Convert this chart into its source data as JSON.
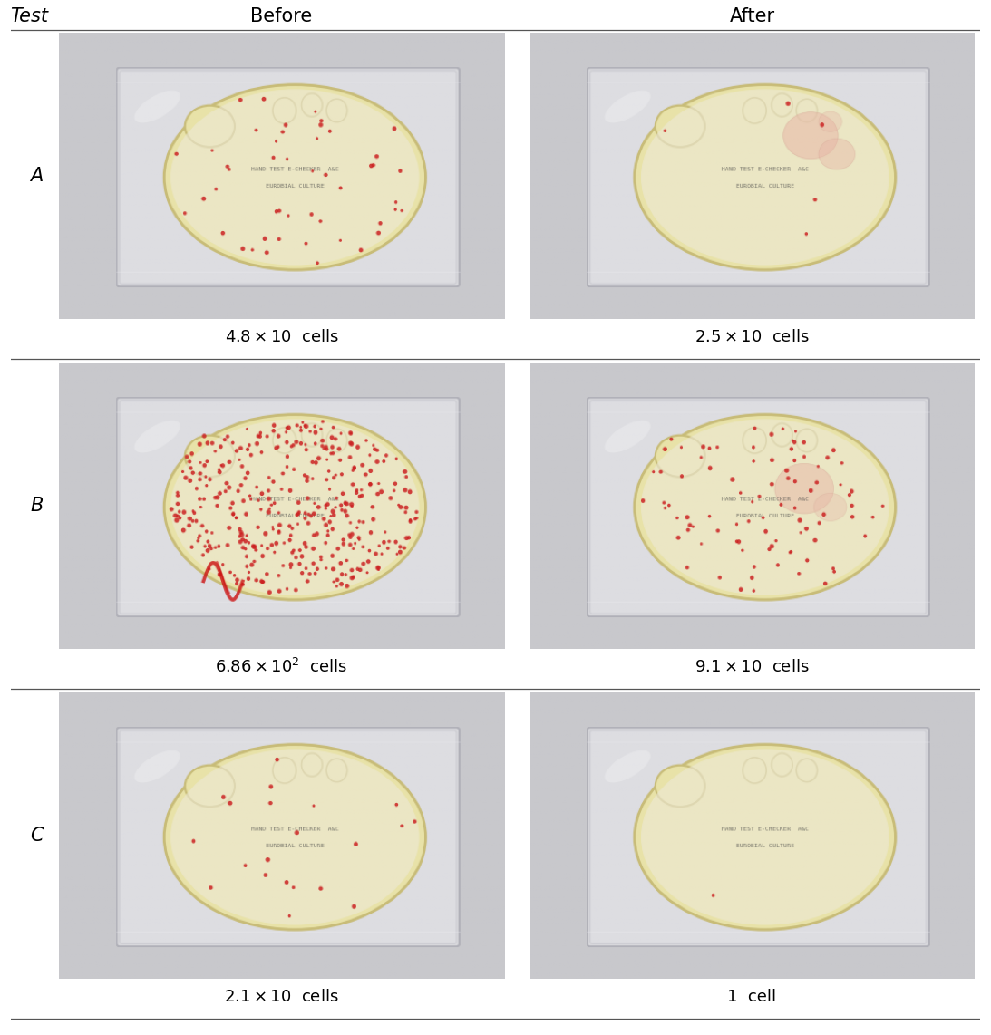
{
  "title_row": [
    "Test",
    "Before",
    "After"
  ],
  "rows": [
    "A",
    "B",
    "C"
  ],
  "cell_counts_before": [
    {
      "base": "4.8",
      "superscript": null,
      "unit": "cells"
    },
    {
      "base": "6.86",
      "superscript": "2",
      "unit": "cells"
    },
    {
      "base": "2.1",
      "superscript": null,
      "unit": "cells"
    }
  ],
  "cell_counts_after": [
    {
      "base": "2.5",
      "superscript": null,
      "unit": "cells"
    },
    {
      "base": "9.1",
      "superscript": null,
      "unit": "cells"
    },
    {
      "base": "1",
      "superscript": null,
      "unit": "cell"
    }
  ],
  "background_color": "#ffffff",
  "text_color": "#000000",
  "header_fontsize": 15,
  "label_fontsize": 13,
  "row_label_fontsize": 15,
  "divider_color": "#555555"
}
